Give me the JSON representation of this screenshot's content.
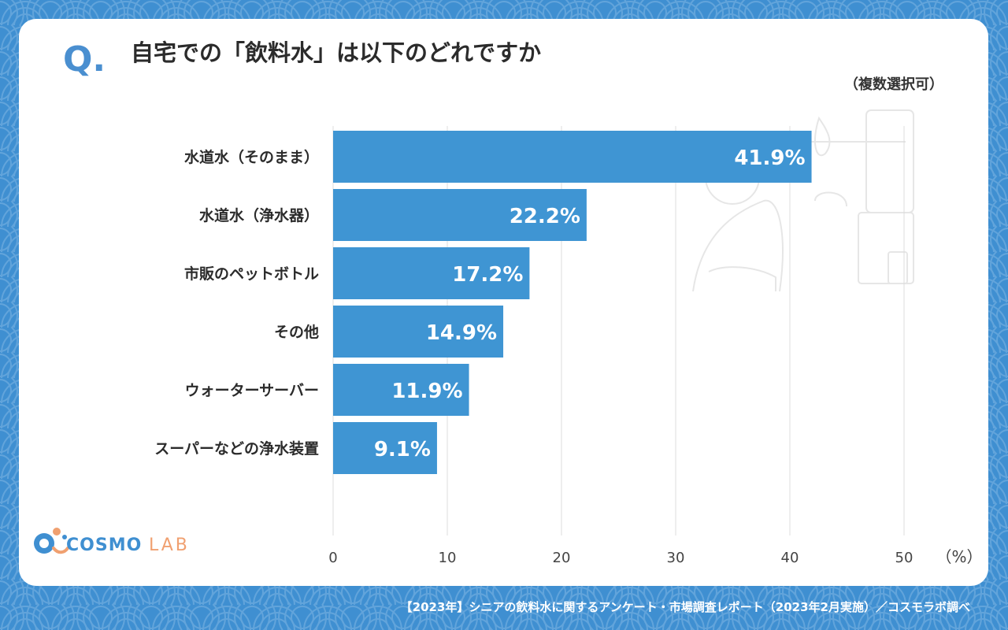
{
  "page": {
    "q_mark": "Q.",
    "note": "（複数選択可）",
    "footer": "【2023年】シニアの飲料水に関するアンケート・市場調査レポート（2023年2月実施）／コスモラボ調べ",
    "logo": {
      "word1": "COSMO",
      "word2": "LAB",
      "icon": "cosmo-lab-logo-icon"
    },
    "colors": {
      "background": "#3f8fd1",
      "bar": "#3f95d3",
      "q_mark": "#4a8fd0",
      "logo_accent": "#f0a070"
    }
  },
  "chart_data": {
    "type": "bar",
    "orientation": "horizontal",
    "title": "自宅での「飲料水」は以下のどれですか",
    "categories": [
      "水道水（そのまま）",
      "水道水（浄水器）",
      "市販のペットボトル",
      "その他",
      "ウォーターサーバー",
      "スーパーなどの浄水装置"
    ],
    "values": [
      41.9,
      22.2,
      17.2,
      14.9,
      11.9,
      9.1
    ],
    "data_labels": [
      "41.9%",
      "22.2%",
      "17.2%",
      "14.9%",
      "11.9%",
      "9.1%"
    ],
    "xlim": [
      0,
      50
    ],
    "x_ticks": [
      0,
      10,
      20,
      30,
      40,
      50
    ],
    "x_tick_labels": [
      "0",
      "10",
      "20",
      "30",
      "40",
      "50"
    ],
    "x_unit": "（%）",
    "grid": true
  }
}
